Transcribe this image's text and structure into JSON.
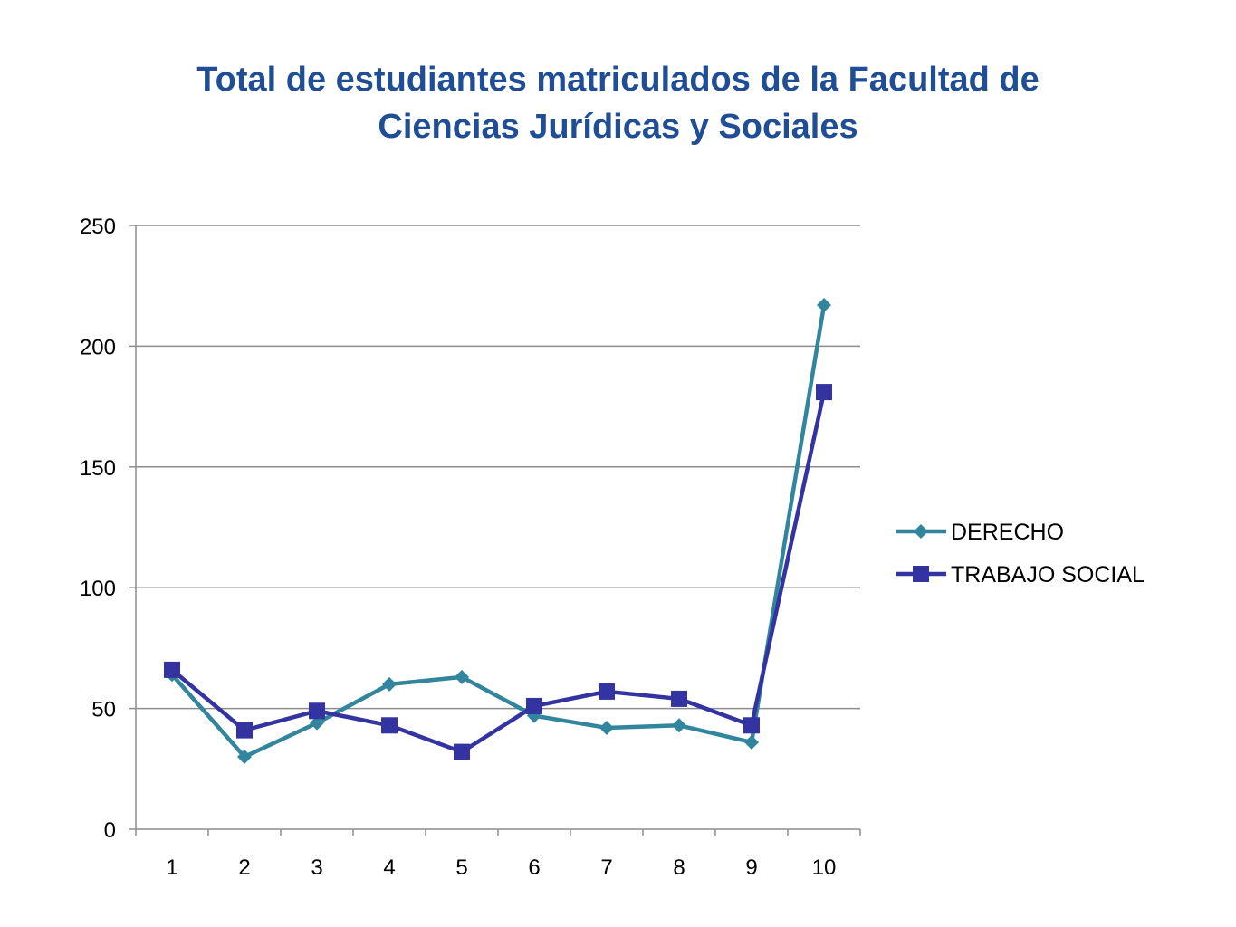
{
  "chart_data": {
    "type": "line",
    "title_lines": [
      "Total de estudiantes matriculados de la Facultad de",
      "Ciencias Jurídicas y Sociales"
    ],
    "categories": [
      "1",
      "2",
      "3",
      "4",
      "5",
      "6",
      "7",
      "8",
      "9",
      "10"
    ],
    "ylim": [
      0,
      250
    ],
    "yticks": [
      "0",
      "50",
      "100",
      "150",
      "200",
      "250"
    ],
    "grid": true,
    "legend_position": "right",
    "series": [
      {
        "name": "DERECHO",
        "color": "#31859c",
        "marker": "diamond",
        "values": [
          64,
          30,
          44,
          60,
          63,
          47,
          42,
          43,
          36,
          217
        ]
      },
      {
        "name": "TRABAJO SOCIAL",
        "color": "#3333a1",
        "marker": "square",
        "values": [
          66,
          41,
          49,
          43,
          32,
          51,
          57,
          54,
          43,
          181
        ]
      }
    ]
  }
}
